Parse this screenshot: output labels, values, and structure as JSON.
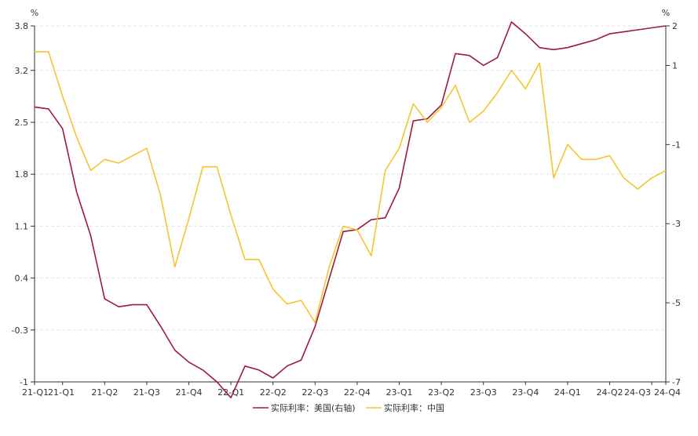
{
  "chart_data": {
    "type": "line",
    "title": "",
    "left_axis_unit": "%",
    "right_axis_unit": "%",
    "left_ylim": [
      -1,
      3.8
    ],
    "left_ticks": [
      "3.8",
      "3.2",
      "2.5",
      "1.8",
      "1.1",
      "0.4",
      "-0.3",
      "-1"
    ],
    "right_ylim": [
      -7,
      2
    ],
    "right_ticks": [
      "2",
      "1",
      "-1",
      "-3",
      "-5",
      "-7"
    ],
    "x_tick_labels": [
      "21-Q1",
      "21-Q1",
      "21-Q2",
      "21-Q3",
      "21-Q4",
      "22-Q1",
      "22-Q2",
      "22-Q3",
      "22-Q4",
      "23-Q1",
      "23-Q2",
      "23-Q3",
      "23-Q4",
      "24-Q1",
      "24-Q2",
      "24-Q3",
      "24-Q4"
    ],
    "x_tick_positions": [
      0,
      2,
      5,
      8,
      11,
      14,
      17,
      20,
      23,
      26,
      29,
      32,
      35,
      38,
      41,
      44,
      45
    ],
    "grid": "horizontal-dashed",
    "legend_position": "bottom-center",
    "series": [
      {
        "name": "实际利率：美国(右轴)",
        "axis": "right",
        "color": "#9b1b3a",
        "values": [
          -0.05,
          -0.1,
          -0.6,
          -2.2,
          -3.3,
          -4.9,
          -5.1,
          -5.05,
          -5.05,
          -5.6,
          -6.2,
          -6.5,
          -6.7,
          -7.0,
          -7.4,
          -6.6,
          -6.7,
          -6.9,
          -6.6,
          -6.45,
          -5.6,
          -4.4,
          -3.2,
          -3.15,
          -2.9,
          -2.85,
          -2.1,
          -0.4,
          -0.35,
          0.0,
          1.3,
          1.25,
          1.0,
          1.2,
          2.1,
          1.8,
          1.45,
          1.4,
          1.45,
          1.55,
          1.65,
          1.8,
          1.85,
          1.9,
          1.95,
          2.0
        ]
      },
      {
        "name": "实际利率：中国",
        "axis": "left",
        "color": "#f4c531",
        "values": [
          3.45,
          3.45,
          2.85,
          2.3,
          1.85,
          2.0,
          1.95,
          2.05,
          2.15,
          1.5,
          0.55,
          1.2,
          1.9,
          1.9,
          1.25,
          0.65,
          0.65,
          0.25,
          0.05,
          0.1,
          -0.2,
          0.55,
          1.1,
          1.05,
          0.7,
          1.85,
          2.15,
          2.75,
          2.5,
          2.7,
          3.0,
          2.5,
          2.65,
          2.9,
          3.2,
          2.95,
          3.3,
          1.75,
          2.2,
          2.0,
          2.0,
          2.05,
          1.75,
          1.6,
          1.75,
          1.85
        ]
      }
    ]
  }
}
